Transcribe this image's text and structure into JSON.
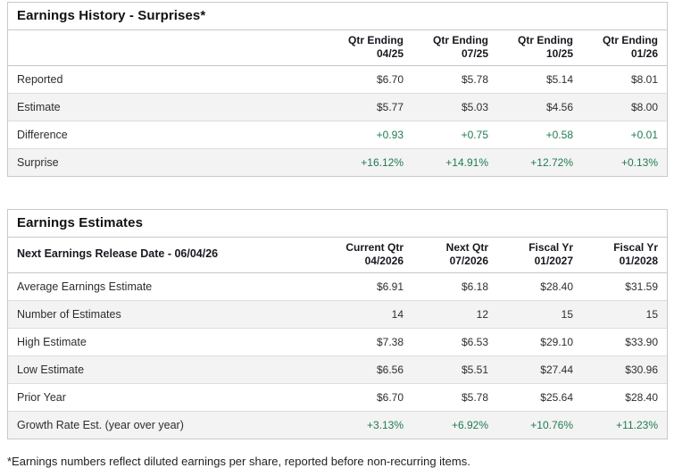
{
  "colors": {
    "positive_value": "#1e7c52",
    "row_alt_background": "#f3f3f3",
    "border": "#c9c9c9",
    "text": "#2e2e2e"
  },
  "earnings_history": {
    "title": "Earnings History - Surprises*",
    "columns": [
      {
        "line1": "Qtr Ending",
        "line2": "04/25"
      },
      {
        "line1": "Qtr Ending",
        "line2": "07/25"
      },
      {
        "line1": "Qtr Ending",
        "line2": "10/25"
      },
      {
        "line1": "Qtr Ending",
        "line2": "01/26"
      }
    ],
    "rows": [
      {
        "label": "Reported",
        "values": [
          "$6.70",
          "$5.78",
          "$5.14",
          "$8.01"
        ],
        "positive": false
      },
      {
        "label": "Estimate",
        "values": [
          "$5.77",
          "$5.03",
          "$4.56",
          "$8.00"
        ],
        "positive": false
      },
      {
        "label": "Difference",
        "values": [
          "+0.93",
          "+0.75",
          "+0.58",
          "+0.01"
        ],
        "positive": true
      },
      {
        "label": "Surprise",
        "values": [
          "+16.12%",
          "+14.91%",
          "+12.72%",
          "+0.13%"
        ],
        "positive": true
      }
    ]
  },
  "earnings_estimates": {
    "title": "Earnings Estimates",
    "release_date_label": "Next Earnings Release Date - 06/04/26",
    "columns": [
      {
        "line1": "Current Qtr",
        "line2": "04/2026"
      },
      {
        "line1": "Next Qtr",
        "line2": "07/2026"
      },
      {
        "line1": "Fiscal Yr",
        "line2": "01/2027"
      },
      {
        "line1": "Fiscal Yr",
        "line2": "01/2028"
      }
    ],
    "rows": [
      {
        "label": "Average Earnings Estimate",
        "values": [
          "$6.91",
          "$6.18",
          "$28.40",
          "$31.59"
        ],
        "positive": false
      },
      {
        "label": "Number of Estimates",
        "values": [
          "14",
          "12",
          "15",
          "15"
        ],
        "positive": false
      },
      {
        "label": "High Estimate",
        "values": [
          "$7.38",
          "$6.53",
          "$29.10",
          "$33.90"
        ],
        "positive": false
      },
      {
        "label": "Low Estimate",
        "values": [
          "$6.56",
          "$5.51",
          "$27.44",
          "$30.96"
        ],
        "positive": false
      },
      {
        "label": "Prior Year",
        "values": [
          "$6.70",
          "$5.78",
          "$25.64",
          "$28.40"
        ],
        "positive": false
      },
      {
        "label": "Growth Rate Est. (year over year)",
        "values": [
          "+3.13%",
          "+6.92%",
          "+10.76%",
          "+11.23%"
        ],
        "positive": true
      }
    ]
  },
  "footnote": "*Earnings numbers reflect diluted earnings per share, reported before non-recurring items."
}
